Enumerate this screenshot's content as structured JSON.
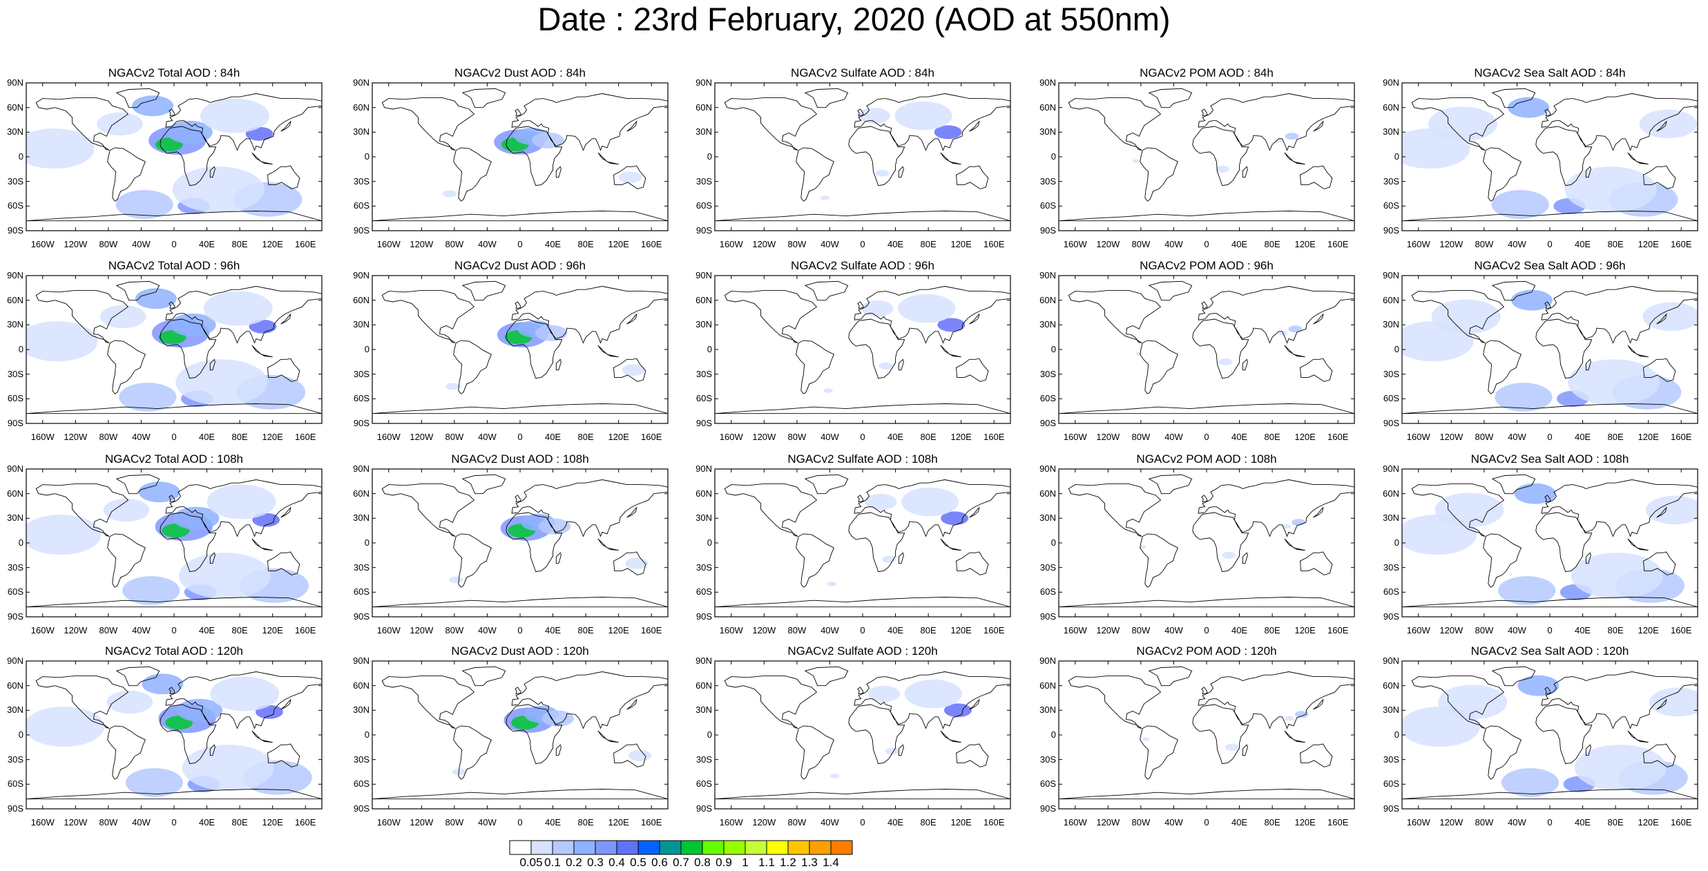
{
  "title": "Date : 23rd February, 2020 (AOD at 550nm)",
  "columns": [
    {
      "species": "Total",
      "titles": [
        "NGACv2 Total AOD : 84h",
        "NGACv2 Total AOD : 96h",
        "NGACv2 Total AOD : 108h",
        "NGACv2 Total AOD : 120h"
      ]
    },
    {
      "species": "Dust",
      "titles": [
        "NGACv2 Dust AOD : 84h",
        "NGACv2 Dust AOD : 96h",
        "NGACv2 Dust AOD : 108h",
        "NGACv2 Dust AOD : 120h"
      ]
    },
    {
      "species": "Sulfate",
      "titles": [
        "NGACv2 Sulfate AOD : 84h",
        "NGACv2 Sulfate AOD : 96h",
        "NGACv2 Sulfate AOD : 108h",
        "NGACv2 Sulfate AOD : 120h"
      ]
    },
    {
      "species": "POM",
      "titles": [
        "NGACv2 POM AOD : 84h",
        "NGACv2 POM AOD : 96h",
        "NGACv2 POM AOD : 108h",
        "NGACv2 POM AOD : 120h"
      ]
    },
    {
      "species": "Sea Salt",
      "titles": [
        "NGACv2 Sea Salt AOD : 84h",
        "NGACv2 Sea Salt AOD : 96h",
        "NGACv2 Sea Salt AOD : 108h",
        "NGACv2 Sea Salt  AOD : 120h"
      ]
    }
  ],
  "lat_ticks": [
    "90N",
    "60N",
    "30N",
    "0",
    "30S",
    "60S",
    "90S"
  ],
  "lon_ticks": [
    "160W",
    "120W",
    "80W",
    "40W",
    "0",
    "40E",
    "80E",
    "120E",
    "160E"
  ],
  "colorbar": {
    "labels": [
      "0.05",
      "0.1",
      "0.2",
      "0.3",
      "0.4",
      "0.5",
      "0.6",
      "0.7",
      "0.8",
      "0.9",
      "1",
      "1.1",
      "1.2",
      "1.3",
      "1.4"
    ],
    "colors": [
      "#ffffff",
      "#d6e2ff",
      "#b5c9ff",
      "#8eb2ff",
      "#7f96ff",
      "#6370f8",
      "#0063ff",
      "#009696",
      "#00c633",
      "#63ff00",
      "#96ff00",
      "#c6ff33",
      "#ffff00",
      "#ffc600",
      "#ffa000",
      "#ff7c00",
      "#ff1900"
    ]
  }
}
